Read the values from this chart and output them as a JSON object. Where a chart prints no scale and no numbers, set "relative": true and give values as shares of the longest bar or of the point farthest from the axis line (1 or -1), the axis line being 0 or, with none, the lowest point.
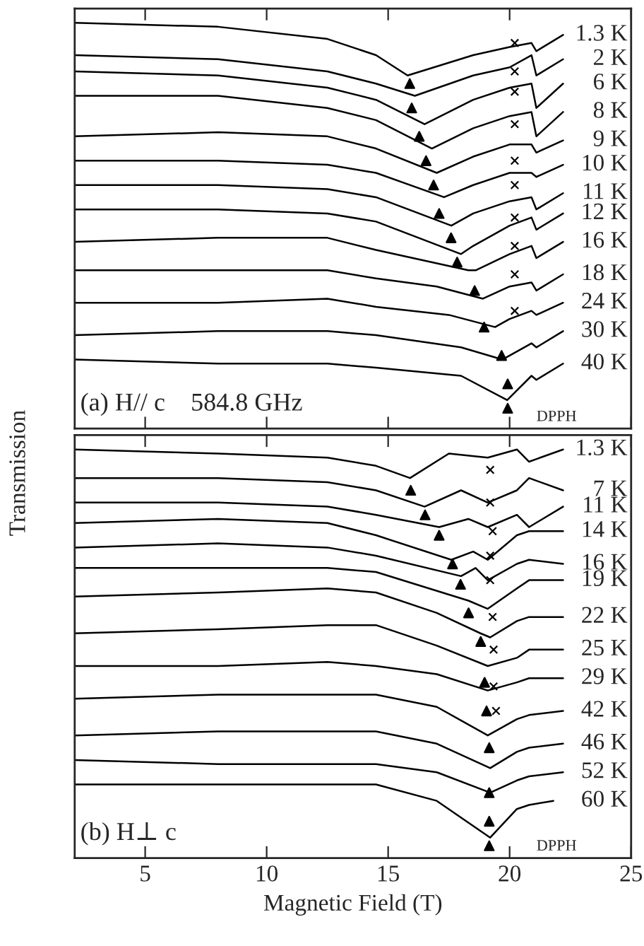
{
  "chart_data": [
    {
      "type": "line",
      "relative": true,
      "ylabel": "Transmission",
      "xlim": [
        2.1,
        25
      ],
      "xticks": [
        5,
        10,
        15,
        20,
        25
      ],
      "tick_labels": false,
      "annotations": [
        "(a) H// c    584.8 GHz",
        "DPPH"
      ],
      "series": [
        {
          "name": "1.3 K",
          "color": "#000000",
          "x": [
            2.1,
            8,
            12.5,
            14.5,
            15.8,
            18.5,
            20,
            20.9,
            21.1,
            22.2
          ],
          "values": [
            1.0,
            0.99,
            0.96,
            0.92,
            0.87,
            0.92,
            0.94,
            0.95,
            0.93,
            0.97
          ]
        },
        {
          "name": "2 K",
          "color": "#000000",
          "x": [
            2.1,
            8,
            12.5,
            14.5,
            16.1,
            18.5,
            20,
            20.9,
            21.1,
            22.2
          ],
          "values": [
            0.92,
            0.91,
            0.88,
            0.85,
            0.82,
            0.87,
            0.89,
            0.92,
            0.87,
            0.91
          ]
        },
        {
          "name": "6 K",
          "color": "#000000",
          "x": [
            2.1,
            8,
            12.5,
            14.5,
            16.5,
            18.5,
            20,
            20.9,
            21.1,
            22.2
          ],
          "values": [
            0.88,
            0.87,
            0.84,
            0.81,
            0.75,
            0.81,
            0.84,
            0.85,
            0.79,
            0.85
          ]
        },
        {
          "name": "8 K",
          "color": "#000000",
          "x": [
            2.1,
            8,
            12.5,
            14.5,
            16.8,
            18.5,
            20,
            20.9,
            21.1,
            22.2
          ],
          "values": [
            0.82,
            0.82,
            0.79,
            0.76,
            0.69,
            0.74,
            0.77,
            0.78,
            0.72,
            0.78
          ]
        },
        {
          "name": "9 K",
          "color": "#000000",
          "x": [
            2.1,
            8,
            12.5,
            14.5,
            17.0,
            18.5,
            20,
            20.9,
            21.1,
            22.2
          ],
          "values": [
            0.72,
            0.73,
            0.72,
            0.69,
            0.63,
            0.67,
            0.7,
            0.7,
            0.68,
            0.71
          ]
        },
        {
          "name": "10 K",
          "color": "#000000",
          "x": [
            2.1,
            8,
            12.5,
            14.5,
            17.3,
            18.5,
            20,
            20.9,
            21.1,
            22.2
          ],
          "values": [
            0.66,
            0.66,
            0.65,
            0.63,
            0.57,
            0.6,
            0.63,
            0.63,
            0.62,
            0.65
          ]
        },
        {
          "name": "11 K",
          "color": "#000000",
          "x": [
            2.1,
            8,
            12.5,
            14.5,
            17.6,
            18.5,
            20,
            20.9,
            21.1,
            22.2
          ],
          "values": [
            0.6,
            0.6,
            0.59,
            0.57,
            0.5,
            0.53,
            0.56,
            0.57,
            0.54,
            0.58
          ]
        },
        {
          "name": "12 K",
          "color": "#000000",
          "x": [
            2.1,
            8,
            12.5,
            14.5,
            18.0,
            18.5,
            20,
            20.9,
            21.1,
            22.2
          ],
          "values": [
            0.54,
            0.54,
            0.53,
            0.51,
            0.43,
            0.45,
            0.5,
            0.52,
            0.49,
            0.53
          ]
        },
        {
          "name": "16 K",
          "color": "#000000",
          "x": [
            2.1,
            8,
            12.5,
            14.5,
            18.3,
            18.6,
            20,
            20.9,
            21.1,
            22.2
          ],
          "values": [
            0.46,
            0.47,
            0.47,
            0.44,
            0.39,
            0.39,
            0.43,
            0.45,
            0.42,
            0.46
          ]
        },
        {
          "name": "18 K",
          "color": "#000000",
          "x": [
            2.1,
            8,
            12.5,
            14.5,
            17,
            18.9,
            20,
            20.9,
            21.1,
            22.2
          ],
          "values": [
            0.39,
            0.39,
            0.39,
            0.37,
            0.35,
            0.32,
            0.35,
            0.36,
            0.34,
            0.38
          ]
        },
        {
          "name": "24 K",
          "color": "#000000",
          "x": [
            2.1,
            8,
            12.5,
            14.5,
            17.5,
            19.4,
            20,
            20.9,
            21.1,
            22.2
          ],
          "values": [
            0.31,
            0.31,
            0.32,
            0.3,
            0.28,
            0.25,
            0.27,
            0.29,
            0.28,
            0.31
          ]
        },
        {
          "name": "30 K",
          "color": "#000000",
          "x": [
            2.1,
            8,
            12.5,
            14.5,
            18,
            19.7,
            20.9,
            21.1,
            22.2
          ],
          "values": [
            0.23,
            0.24,
            0.24,
            0.23,
            0.2,
            0.17,
            0.21,
            0.2,
            0.24
          ]
        },
        {
          "name": "40 K",
          "color": "#000000",
          "x": [
            2.1,
            8,
            12.5,
            14.5,
            18,
            19.9,
            20.9,
            21.1,
            22.2
          ],
          "values": [
            0.17,
            0.16,
            0.16,
            0.15,
            0.13,
            0.07,
            0.13,
            0.12,
            0.16
          ]
        },
        {
          "type": "scatter",
          "marker": "triangle",
          "color": "#000000",
          "x": [
            15.89,
            15.97,
            16.28,
            16.56,
            16.87,
            17.1,
            17.59,
            17.84,
            18.56,
            18.95,
            19.67,
            19.92,
            19.92
          ],
          "values": [
            0.85,
            0.79,
            0.72,
            0.66,
            0.6,
            0.53,
            0.47,
            0.41,
            0.34,
            0.25,
            0.18,
            0.11,
            0.05
          ]
        },
        {
          "type": "scatter",
          "marker": "cross",
          "color": "#000000",
          "x": [
            20.21,
            20.21,
            20.21,
            20.21,
            20.21,
            20.21,
            20.21,
            20.21,
            20.21,
            20.21
          ],
          "values": [
            0.95,
            0.88,
            0.83,
            0.75,
            0.66,
            0.6,
            0.52,
            0.45,
            0.38,
            0.29
          ]
        }
      ]
    },
    {
      "type": "line",
      "relative": true,
      "xlabel": "Magnetic Field (T)",
      "xlim": [
        2.1,
        25
      ],
      "xticks": [
        5,
        10,
        15,
        20,
        25
      ],
      "tick_labels": "x",
      "annotations": [
        "(b) H⊥ c",
        "DPPH"
      ],
      "series": [
        {
          "name": "1.3 K",
          "color": "#000000",
          "x": [
            2.1,
            8,
            12.5,
            14.5,
            15.9,
            17.5,
            19.1,
            20.3,
            20.8,
            22.2
          ],
          "values": [
            1.0,
            0.99,
            0.98,
            0.96,
            0.93,
            0.99,
            0.98,
            1.0,
            0.97,
            1.0
          ]
        },
        {
          "name": "7 K",
          "color": "#000000",
          "x": [
            2.1,
            8,
            12.5,
            14.5,
            16.5,
            18,
            19.1,
            20.3,
            20.8,
            22.2
          ],
          "values": [
            0.93,
            0.93,
            0.92,
            0.9,
            0.86,
            0.9,
            0.87,
            0.9,
            0.93,
            0.9
          ]
        },
        {
          "name": "11 K",
          "color": "#000000",
          "x": [
            2.1,
            8,
            12.5,
            14.5,
            17.1,
            18.3,
            19.1,
            20.3,
            20.8,
            22.2
          ],
          "values": [
            0.87,
            0.87,
            0.86,
            0.84,
            0.81,
            0.83,
            0.81,
            0.84,
            0.81,
            0.86
          ]
        },
        {
          "name": "14 K",
          "color": "#000000",
          "x": [
            2.1,
            8,
            12.5,
            14.5,
            17.6,
            18.5,
            19.1,
            20.3,
            20.8,
            22.2
          ],
          "values": [
            0.82,
            0.83,
            0.82,
            0.79,
            0.73,
            0.75,
            0.73,
            0.79,
            0.8,
            0.8
          ]
        },
        {
          "name": "16 K",
          "color": "#000000",
          "x": [
            2.1,
            8,
            12.5,
            14.5,
            18.0,
            18.6,
            19.1,
            20.3,
            20.8,
            22.2
          ],
          "values": [
            0.76,
            0.77,
            0.76,
            0.74,
            0.69,
            0.71,
            0.68,
            0.72,
            0.73,
            0.72
          ]
        },
        {
          "name": "19 K",
          "color": "#000000",
          "x": [
            2.1,
            8,
            12.5,
            14.5,
            18.3,
            19.1,
            20.3,
            20.8,
            22.2
          ],
          "values": [
            0.71,
            0.71,
            0.71,
            0.7,
            0.63,
            0.61,
            0.66,
            0.68,
            0.68
          ]
        },
        {
          "name": "22 K",
          "color": "#000000",
          "x": [
            2.1,
            8,
            12.5,
            14.5,
            17,
            18.8,
            19.2,
            20.3,
            20.8,
            22.2
          ],
          "values": [
            0.64,
            0.65,
            0.66,
            0.65,
            0.6,
            0.55,
            0.54,
            0.58,
            0.59,
            0.59
          ]
        },
        {
          "name": "25 K",
          "color": "#000000",
          "x": [
            2.1,
            8,
            12.5,
            14.5,
            17,
            19.1,
            20.3,
            20.8,
            22.2
          ],
          "values": [
            0.55,
            0.56,
            0.57,
            0.57,
            0.52,
            0.47,
            0.49,
            0.51,
            0.51
          ]
        },
        {
          "name": "29 K",
          "color": "#000000",
          "x": [
            2.1,
            8,
            12.5,
            14.5,
            17,
            19.1,
            20.3,
            20.8,
            22.2
          ],
          "values": [
            0.47,
            0.47,
            0.48,
            0.47,
            0.45,
            0.41,
            0.43,
            0.44,
            0.44
          ]
        },
        {
          "name": "42 K",
          "color": "#000000",
          "x": [
            2.1,
            8,
            12.5,
            14.5,
            17,
            19.1,
            20.3,
            20.8,
            22.2
          ],
          "values": [
            0.39,
            0.4,
            0.4,
            0.4,
            0.37,
            0.3,
            0.34,
            0.35,
            0.36
          ]
        },
        {
          "name": "46 K",
          "color": "#000000",
          "x": [
            2.1,
            8,
            12.5,
            14.5,
            17,
            19.2,
            20.3,
            20.8,
            22.2
          ],
          "values": [
            0.3,
            0.31,
            0.31,
            0.31,
            0.28,
            0.22,
            0.26,
            0.27,
            0.28
          ]
        },
        {
          "name": "52 K",
          "color": "#000000",
          "x": [
            2.1,
            8,
            12.5,
            14.5,
            17,
            19.2,
            20.3,
            20.8,
            22.2
          ],
          "values": [
            0.24,
            0.23,
            0.23,
            0.23,
            0.21,
            0.16,
            0.19,
            0.2,
            0.21
          ]
        },
        {
          "name": "60 K",
          "color": "#000000",
          "x": [
            2.1,
            8,
            12.5,
            14.5,
            17,
            19.2,
            20.3,
            20.8,
            21.8
          ],
          "values": [
            0.18,
            0.18,
            0.18,
            0.18,
            0.14,
            0.05,
            0.12,
            0.13,
            0.14
          ]
        },
        {
          "type": "scatter",
          "marker": "triangle",
          "color": "#000000",
          "x": [
            15.93,
            16.52,
            17.1,
            17.65,
            17.98,
            18.31,
            18.81,
            18.97,
            19.05,
            19.16,
            19.16,
            19.16,
            19.16
          ],
          "values": [
            0.9,
            0.84,
            0.79,
            0.72,
            0.67,
            0.6,
            0.53,
            0.43,
            0.36,
            0.27,
            0.16,
            0.09,
            0.03
          ]
        },
        {
          "type": "scatter",
          "marker": "cross",
          "color": "#000000",
          "x": [
            19.2,
            19.2,
            19.3,
            19.2,
            19.2,
            19.3,
            19.34,
            19.34,
            19.44
          ],
          "values": [
            0.95,
            0.87,
            0.8,
            0.74,
            0.68,
            0.59,
            0.51,
            0.42,
            0.36
          ]
        }
      ]
    }
  ]
}
